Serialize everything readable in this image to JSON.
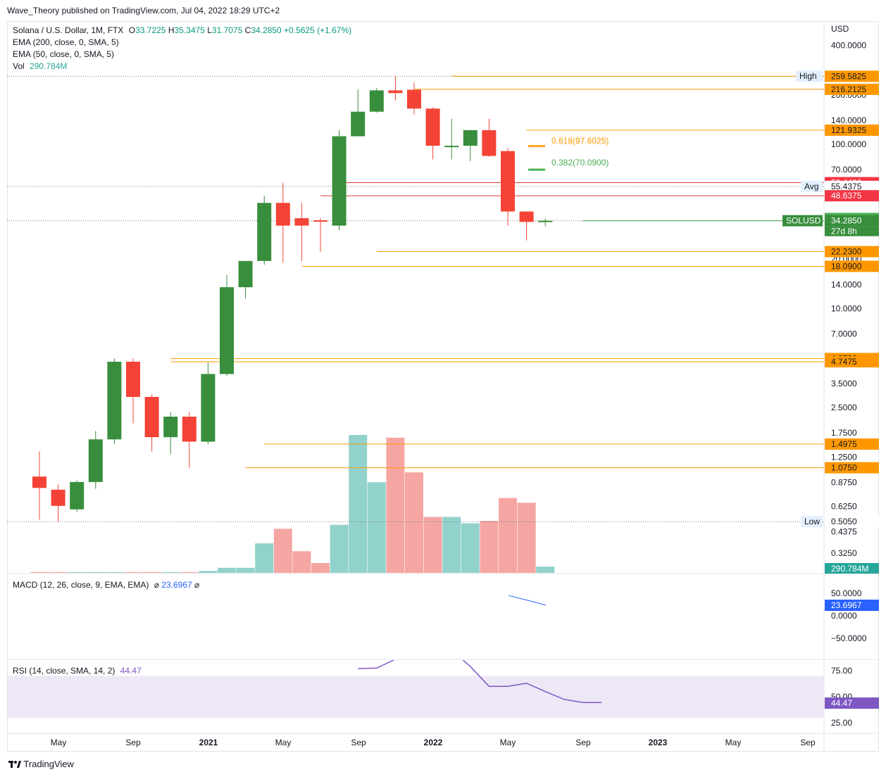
{
  "header": {
    "publisher": "Wave_Theory published on TradingView.com, Jul 04, 2022 18:29 UTC+2",
    "symbol": "Solana / U.S. Dollar, 1M, FTX",
    "ohlc": {
      "o_label": "O",
      "o": "33.7225",
      "h_label": "H",
      "h": "35.3475",
      "l_label": "L",
      "l": "31.7075",
      "c_label": "C",
      "c": "34.2850",
      "change": "+0.5625 (+1.67%)"
    },
    "ema200": "EMA (200, close, 0, SMA, 5)",
    "ema50": "EMA (50, close, 0, SMA, 5)",
    "vol_label": "Vol",
    "vol_value": "290.784M",
    "macd_label": "MACD (12, 26, close, 9, EMA, EMA)",
    "macd_sym1": "⌀",
    "macd_value": "23.6967",
    "macd_sym2": "⌀",
    "rsi_label": "RSI (14, close, SMA, 14, 2)",
    "rsi_value": "44.47"
  },
  "currency": "USD",
  "footer": {
    "logo_text": "TradingView"
  },
  "colors": {
    "up": "#388e3c",
    "down": "#f44336",
    "vol_up": "#92d2cc",
    "vol_down": "#f5a6a3",
    "orange": "#ff9800",
    "red_line": "#e53935",
    "macd": "#2962ff",
    "rsi": "#7e57c2",
    "rsi_band": "#ede7f6"
  },
  "chart_data": {
    "type": "candlestick",
    "scale": "log",
    "yaxis_ticks": [
      "400.0000",
      "200.0000",
      "140.0000",
      "100.0000",
      "70.0000",
      "20.0000",
      "14.0000",
      "10.0000",
      "7.0000",
      "3.5000",
      "2.5000",
      "1.7500",
      "1.2500",
      "0.8750",
      "0.6250",
      "0.4375",
      "0.3250"
    ],
    "x_ticks": [
      "May",
      "Sep",
      "2021",
      "May",
      "Sep",
      "2022",
      "May",
      "Sep",
      "2023",
      "May",
      "Sep"
    ],
    "candles": [
      {
        "date": "2020-04",
        "o": 0.95,
        "h": 1.35,
        "l": 0.52,
        "c": 0.81
      },
      {
        "date": "2020-05",
        "o": 0.79,
        "h": 0.85,
        "l": 0.5,
        "c": 0.63
      },
      {
        "date": "2020-06",
        "o": 0.6,
        "h": 0.9,
        "l": 0.58,
        "c": 0.88
      },
      {
        "date": "2020-07",
        "o": 0.88,
        "h": 1.8,
        "l": 0.8,
        "c": 1.6
      },
      {
        "date": "2020-08",
        "o": 1.6,
        "h": 4.97,
        "l": 1.5,
        "c": 4.75
      },
      {
        "date": "2020-09",
        "o": 4.75,
        "h": 4.97,
        "l": 2.0,
        "c": 2.9
      },
      {
        "date": "2020-10",
        "o": 2.9,
        "h": 3.0,
        "l": 1.35,
        "c": 1.65
      },
      {
        "date": "2020-11",
        "o": 1.65,
        "h": 2.35,
        "l": 1.3,
        "c": 2.2
      },
      {
        "date": "2020-12",
        "o": 2.2,
        "h": 2.35,
        "l": 1.075,
        "c": 1.55
      },
      {
        "date": "2021-01",
        "o": 1.55,
        "h": 4.7,
        "l": 1.5,
        "c": 4.0
      },
      {
        "date": "2021-02",
        "o": 4.0,
        "h": 16.0,
        "l": 3.9,
        "c": 13.5
      },
      {
        "date": "2021-03",
        "o": 13.5,
        "h": 18.5,
        "l": 11.5,
        "c": 19.5
      },
      {
        "date": "2021-04",
        "o": 19.5,
        "h": 48.6,
        "l": 18.5,
        "c": 44.0
      },
      {
        "date": "2021-05",
        "o": 44.0,
        "h": 58.4,
        "l": 19.0,
        "c": 32.0
      },
      {
        "date": "2021-06",
        "o": 35.5,
        "h": 44.0,
        "l": 19.5,
        "c": 32.0
      },
      {
        "date": "2021-07",
        "o": 34.5,
        "h": 35.5,
        "l": 22.23,
        "c": 34.0
      },
      {
        "date": "2021-08",
        "o": 32.0,
        "h": 122.0,
        "l": 30.0,
        "c": 112.0
      },
      {
        "date": "2021-09",
        "o": 112.0,
        "h": 216.2,
        "l": 112.0,
        "c": 158.0
      },
      {
        "date": "2021-10",
        "o": 158.0,
        "h": 220.0,
        "l": 156.0,
        "c": 213.0
      },
      {
        "date": "2021-11",
        "o": 213.0,
        "h": 259.99,
        "l": 185.0,
        "c": 205.0
      },
      {
        "date": "2021-12",
        "o": 215.0,
        "h": 238.0,
        "l": 152.0,
        "c": 165.0
      },
      {
        "date": "2022-01",
        "o": 165.0,
        "h": 168.0,
        "l": 81.0,
        "c": 98.0
      },
      {
        "date": "2022-02",
        "o": 98.0,
        "h": 143.0,
        "l": 81.0,
        "c": 98.0
      },
      {
        "date": "2022-03",
        "o": 98.0,
        "h": 122.0,
        "l": 79.0,
        "c": 122.0
      },
      {
        "date": "2022-04",
        "o": 122.0,
        "h": 143.0,
        "l": 84.0,
        "c": 85.0
      },
      {
        "date": "2022-05",
        "o": 91.0,
        "h": 95.0,
        "l": 32.0,
        "c": 39.0
      },
      {
        "date": "2022-06",
        "o": 39.0,
        "h": 39.0,
        "l": 26.0,
        "c": 33.7
      },
      {
        "date": "2022-07",
        "o": 33.7225,
        "h": 35.3475,
        "l": 31.7075,
        "c": 34.285
      }
    ],
    "volume": [
      0.02,
      0.02,
      0.02,
      0.02,
      0.02,
      0.02,
      0.02,
      0.02,
      0.02,
      0.05,
      0.13,
      0.13,
      0.75,
      1.12,
      0.55,
      0.25,
      1.22,
      3.5,
      2.3,
      3.43,
      2.55,
      1.42,
      1.42,
      1.26,
      1.32,
      1.9,
      1.78,
      0.16
    ],
    "macd_line": [
      {
        "date": "2022-05",
        "v": 45
      },
      {
        "date": "2022-06",
        "v": 35
      },
      {
        "date": "2022-07",
        "v": 23.6967
      }
    ],
    "macd_ticks": [
      "50.0000",
      "0.0000",
      "−50.0000"
    ],
    "rsi_line": [
      {
        "date": "2021-06",
        "v": 77
      },
      {
        "date": "2021-07",
        "v": 77.5
      },
      {
        "date": "2021-08",
        "v": 86
      },
      {
        "date": "2021-09",
        "v": 95
      },
      {
        "date": "2021-10",
        "v": 95
      },
      {
        "date": "2021-11",
        "v": 95
      },
      {
        "date": "2021-12",
        "v": 79
      },
      {
        "date": "2022-01",
        "v": 60
      },
      {
        "date": "2022-02",
        "v": 60
      },
      {
        "date": "2022-03",
        "v": 63
      },
      {
        "date": "2022-04",
        "v": 55
      },
      {
        "date": "2022-05",
        "v": 47.5
      },
      {
        "date": "2022-06",
        "v": 44.5
      },
      {
        "date": "2022-07",
        "v": 44.47
      }
    ],
    "rsi_ticks": [
      "75.00",
      "50.00",
      "25.00"
    ],
    "rsi_band": [
      30,
      70
    ],
    "price_labels": [
      {
        "value": 259.995,
        "text": "259.9950",
        "style": "plain"
      },
      {
        "value": 259.5825,
        "text": "259.5825",
        "style": "orange"
      },
      {
        "value": 216.2125,
        "text": "216.2125",
        "style": "orange"
      },
      {
        "value": 121.9325,
        "text": "121.9325",
        "style": "orange"
      },
      {
        "value": 58.44,
        "text": "58.4400",
        "style": "red"
      },
      {
        "value": 55.4375,
        "text": "55.4375",
        "style": "plain"
      },
      {
        "value": 48.6375,
        "text": "48.6375",
        "style": "red"
      },
      {
        "value": 35.3675,
        "text": "35.3675",
        "style": "green"
      },
      {
        "value": 34.285,
        "text": "34.2850",
        "style": "darkgreen"
      },
      {
        "value": 22.23,
        "text": "22.2300",
        "style": "orange"
      },
      {
        "value": 18.09,
        "text": "18.0900",
        "style": "orange"
      },
      {
        "value": 4.97,
        "text": "4.9700",
        "style": "orange"
      },
      {
        "value": 4.7475,
        "text": "4.7475",
        "style": "orange"
      },
      {
        "value": 1.4975,
        "text": "1.4975",
        "style": "orange"
      },
      {
        "value": 1.075,
        "text": "1.0750",
        "style": "orange"
      },
      {
        "value": 0.505,
        "text": "0.5050",
        "style": "plain"
      }
    ],
    "countdown": "27d 8h",
    "vol_axis_label": "290.784M",
    "macd_axis_label": "23.6967",
    "rsi_axis_label": "44.47",
    "tags": [
      {
        "value": 259.995,
        "text": "High"
      },
      {
        "value": 55.4375,
        "text": "Avg"
      },
      {
        "value": 34.285,
        "text": "SOLUSD",
        "dark": true
      },
      {
        "value": 0.505,
        "text": "Low"
      }
    ],
    "fib": [
      {
        "value": 97.6025,
        "text": "0.618(97.6025)",
        "faded": "0.618(97.6025)"
      },
      {
        "value": 70.09,
        "text": "0.382(70.0900)"
      }
    ],
    "hlines": [
      {
        "value": 259.5825,
        "from": "2021-11",
        "color": "orange"
      },
      {
        "value": 216.2125,
        "from": "2021-09",
        "color": "orange"
      },
      {
        "value": 121.9325,
        "from": "2022-03",
        "color": "orange"
      },
      {
        "value": 58.44,
        "from": "2021-05",
        "color": "red"
      },
      {
        "value": 48.6375,
        "from": "2021-04",
        "color": "red"
      },
      {
        "value": 34.285,
        "from": "2022-06",
        "color": "green"
      },
      {
        "value": 22.23,
        "from": "2021-07",
        "color": "orange"
      },
      {
        "value": 18.09,
        "from": "2021-03",
        "color": "orange"
      },
      {
        "value": 4.97,
        "from": "2020-08",
        "color": "orange"
      },
      {
        "value": 4.7475,
        "from": "2020-08",
        "color": "orange"
      },
      {
        "value": 1.4975,
        "from": "2021-01",
        "color": "orange"
      },
      {
        "value": 1.075,
        "from": "2020-12",
        "color": "orange"
      }
    ],
    "dotted_lines": [
      259.995,
      55.4375,
      34.285,
      0.505
    ]
  }
}
